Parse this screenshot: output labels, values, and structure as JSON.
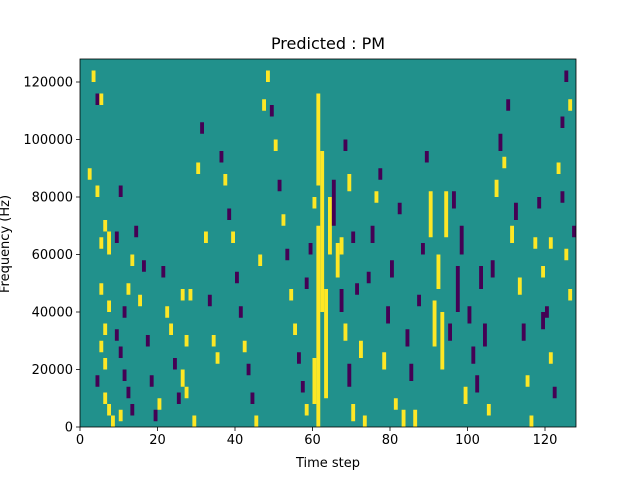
{
  "chart_data": {
    "type": "heatmap",
    "title": "Predicted : PM",
    "xlabel": "Time step",
    "ylabel": "Frequency (Hz)",
    "xlim": [
      0,
      128
    ],
    "ylim": [
      0,
      128000
    ],
    "xticks": [
      0,
      20,
      40,
      60,
      80,
      100,
      120
    ],
    "yticks": [
      0,
      20000,
      40000,
      60000,
      80000,
      100000,
      120000
    ],
    "xtick_labels": [
      "0",
      "20",
      "40",
      "60",
      "80",
      "100",
      "120"
    ],
    "ytick_labels": [
      "0",
      "20000",
      "40000",
      "60000",
      "80000",
      "100000",
      "120000"
    ],
    "n_freq_bins": 128,
    "background_value": 0.5,
    "colormap": [
      "#440154",
      "#21918c",
      "#fde725"
    ],
    "cells_note": "each entry: [time_step, freq_bin_start, freq_bin_end, value]",
    "cells": [
      [
        3,
        120,
        124,
        1
      ],
      [
        4,
        112,
        116,
        0
      ],
      [
        5,
        112,
        116,
        1
      ],
      [
        2,
        86,
        90,
        1
      ],
      [
        4,
        80,
        84,
        1
      ],
      [
        5,
        62,
        66,
        1
      ],
      [
        6,
        68,
        72,
        1
      ],
      [
        7,
        60,
        68,
        1
      ],
      [
        7,
        40,
        44,
        1
      ],
      [
        5,
        46,
        50,
        1
      ],
      [
        6,
        32,
        36,
        1
      ],
      [
        5,
        26,
        30,
        1
      ],
      [
        6,
        20,
        24,
        1
      ],
      [
        4,
        14,
        18,
        0
      ],
      [
        6,
        8,
        12,
        1
      ],
      [
        7,
        4,
        8,
        1
      ],
      [
        8,
        0,
        4,
        1
      ],
      [
        9,
        30,
        34,
        0
      ],
      [
        10,
        24,
        28,
        0
      ],
      [
        11,
        16,
        20,
        0
      ],
      [
        12,
        10,
        14,
        0
      ],
      [
        13,
        4,
        8,
        0
      ],
      [
        10,
        2,
        6,
        1
      ],
      [
        9,
        64,
        68,
        0
      ],
      [
        10,
        80,
        84,
        0
      ],
      [
        11,
        38,
        42,
        0
      ],
      [
        12,
        46,
        50,
        1
      ],
      [
        13,
        56,
        60,
        1
      ],
      [
        14,
        66,
        70,
        0
      ],
      [
        15,
        42,
        46,
        1
      ],
      [
        16,
        54,
        58,
        0
      ],
      [
        17,
        28,
        32,
        0
      ],
      [
        18,
        14,
        18,
        0
      ],
      [
        19,
        2,
        6,
        0
      ],
      [
        20,
        6,
        10,
        1
      ],
      [
        21,
        52,
        56,
        0
      ],
      [
        22,
        38,
        42,
        1
      ],
      [
        23,
        32,
        36,
        1
      ],
      [
        24,
        20,
        24,
        0
      ],
      [
        25,
        8,
        12,
        0
      ],
      [
        26,
        44,
        48,
        1
      ],
      [
        27,
        28,
        32,
        1
      ],
      [
        26,
        14,
        20,
        1
      ],
      [
        27,
        10,
        14,
        1
      ],
      [
        28,
        44,
        48,
        1
      ],
      [
        29,
        0,
        4,
        1
      ],
      [
        30,
        88,
        92,
        1
      ],
      [
        31,
        102,
        106,
        0
      ],
      [
        32,
        64,
        68,
        1
      ],
      [
        33,
        42,
        46,
        0
      ],
      [
        34,
        28,
        32,
        1
      ],
      [
        35,
        22,
        26,
        1
      ],
      [
        36,
        92,
        96,
        0
      ],
      [
        37,
        84,
        88,
        1
      ],
      [
        38,
        72,
        76,
        0
      ],
      [
        39,
        64,
        68,
        1
      ],
      [
        40,
        50,
        54,
        0
      ],
      [
        41,
        38,
        42,
        0
      ],
      [
        42,
        26,
        30,
        1
      ],
      [
        43,
        18,
        22,
        0
      ],
      [
        44,
        8,
        12,
        0
      ],
      [
        45,
        0,
        4,
        1
      ],
      [
        46,
        56,
        60,
        1
      ],
      [
        47,
        110,
        114,
        1
      ],
      [
        48,
        120,
        124,
        1
      ],
      [
        49,
        108,
        112,
        0
      ],
      [
        50,
        96,
        100,
        1
      ],
      [
        51,
        82,
        86,
        0
      ],
      [
        52,
        70,
        74,
        1
      ],
      [
        53,
        58,
        62,
        0
      ],
      [
        54,
        44,
        48,
        1
      ],
      [
        55,
        32,
        36,
        1
      ],
      [
        56,
        22,
        26,
        0
      ],
      [
        57,
        12,
        16,
        0
      ],
      [
        58,
        4,
        8,
        1
      ],
      [
        58,
        48,
        52,
        0
      ],
      [
        59,
        60,
        64,
        0
      ],
      [
        60,
        76,
        80,
        1
      ],
      [
        61,
        84,
        116,
        1
      ],
      [
        61,
        0,
        70,
        1
      ],
      [
        62,
        40,
        96,
        1
      ],
      [
        63,
        10,
        48,
        1
      ],
      [
        60,
        8,
        24,
        1
      ],
      [
        64,
        60,
        80,
        1
      ],
      [
        65,
        70,
        86,
        0
      ],
      [
        66,
        52,
        64,
        1
      ],
      [
        67,
        40,
        48,
        0
      ],
      [
        68,
        30,
        36,
        1
      ],
      [
        69,
        14,
        22,
        0
      ],
      [
        70,
        2,
        8,
        1
      ],
      [
        67,
        60,
        66,
        1
      ],
      [
        68,
        96,
        100,
        0
      ],
      [
        69,
        82,
        88,
        1
      ],
      [
        70,
        64,
        68,
        0
      ],
      [
        71,
        46,
        50,
        0
      ],
      [
        72,
        24,
        30,
        1
      ],
      [
        73,
        0,
        4,
        1
      ],
      [
        74,
        50,
        54,
        0
      ],
      [
        75,
        64,
        70,
        0
      ],
      [
        76,
        78,
        82,
        1
      ],
      [
        77,
        86,
        90,
        0
      ],
      [
        78,
        20,
        26,
        1
      ],
      [
        79,
        36,
        42,
        0
      ],
      [
        80,
        52,
        58,
        0
      ],
      [
        81,
        6,
        10,
        1
      ],
      [
        82,
        74,
        78,
        0
      ],
      [
        83,
        0,
        6,
        1
      ],
      [
        84,
        28,
        34,
        0
      ],
      [
        85,
        16,
        22,
        0
      ],
      [
        86,
        0,
        6,
        1
      ],
      [
        87,
        42,
        46,
        0
      ],
      [
        88,
        60,
        64,
        0
      ],
      [
        89,
        92,
        96,
        0
      ],
      [
        90,
        66,
        82,
        1
      ],
      [
        91,
        28,
        44,
        1
      ],
      [
        92,
        48,
        60,
        1
      ],
      [
        93,
        20,
        40,
        1
      ],
      [
        94,
        66,
        82,
        1
      ],
      [
        95,
        30,
        36,
        0
      ],
      [
        96,
        76,
        82,
        0
      ],
      [
        97,
        40,
        56,
        0
      ],
      [
        98,
        60,
        70,
        0
      ],
      [
        99,
        8,
        14,
        1
      ],
      [
        100,
        36,
        42,
        0
      ],
      [
        101,
        22,
        28,
        0
      ],
      [
        102,
        12,
        18,
        0
      ],
      [
        103,
        48,
        56,
        0
      ],
      [
        104,
        28,
        36,
        0
      ],
      [
        105,
        4,
        8,
        1
      ],
      [
        106,
        52,
        58,
        0
      ],
      [
        107,
        80,
        86,
        1
      ],
      [
        108,
        96,
        102,
        0
      ],
      [
        109,
        90,
        94,
        1
      ],
      [
        110,
        110,
        114,
        0
      ],
      [
        111,
        64,
        70,
        1
      ],
      [
        112,
        72,
        78,
        0
      ],
      [
        113,
        46,
        52,
        1
      ],
      [
        114,
        30,
        36,
        0
      ],
      [
        115,
        14,
        18,
        1
      ],
      [
        116,
        0,
        4,
        1
      ],
      [
        117,
        62,
        66,
        1
      ],
      [
        118,
        76,
        80,
        0
      ],
      [
        119,
        52,
        56,
        1
      ],
      [
        120,
        38,
        42,
        0
      ],
      [
        121,
        22,
        26,
        1
      ],
      [
        122,
        10,
        14,
        0
      ],
      [
        123,
        88,
        92,
        1
      ],
      [
        124,
        104,
        108,
        0
      ],
      [
        125,
        58,
        62,
        1
      ],
      [
        126,
        44,
        48,
        1
      ],
      [
        127,
        66,
        70,
        0
      ],
      [
        125,
        120,
        124,
        0
      ],
      [
        126,
        110,
        114,
        1
      ],
      [
        124,
        78,
        82,
        0
      ],
      [
        121,
        62,
        66,
        1
      ],
      [
        119,
        34,
        40,
        0
      ]
    ]
  }
}
